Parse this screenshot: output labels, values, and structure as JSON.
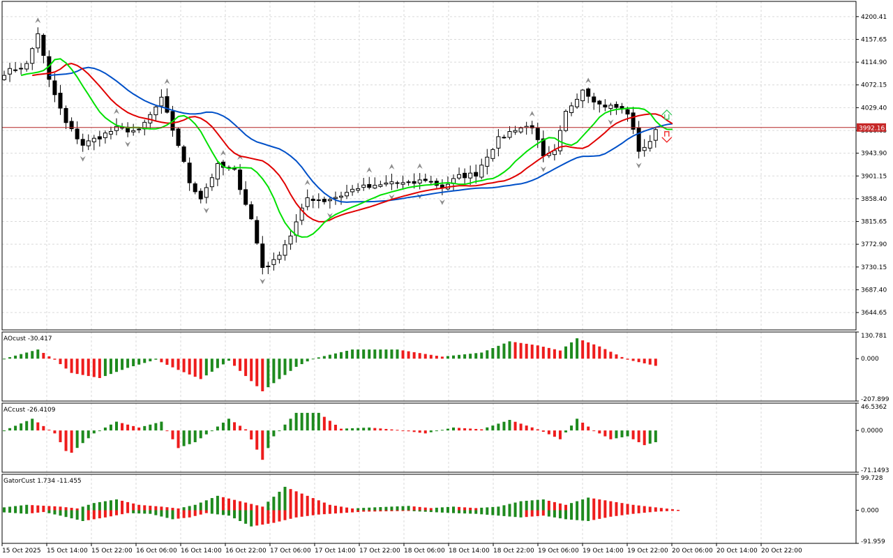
{
  "colors": {
    "background": "#ffffff",
    "grid": "#d9d9d9",
    "frame": "#000000",
    "candle": "#000000",
    "fractal": "#8c8c8c",
    "bid_line": "#b22222",
    "price_tag_bg": "#c62828",
    "ma_fast": "#00e000",
    "ma_mid": "#e00000",
    "ma_slow": "#0050c8",
    "hist_up": "#1e8a1e",
    "hist_down": "#ee1c1c",
    "arrow_up": "#34c759",
    "arrow_down": "#ee1c1c"
  },
  "chart_data": {
    "type": "candlestick-with-indicators",
    "x_tick_labels": [
      "15 Oct 2025",
      "15 Oct 14:00",
      "15 Oct 22:00",
      "16 Oct 06:00",
      "16 Oct 14:00",
      "16 Oct 22:00",
      "17 Oct 06:00",
      "17 Oct 14:00",
      "17 Oct 22:00",
      "18 Oct 06:00",
      "18 Oct 14:00",
      "18 Oct 22:00",
      "19 Oct 06:00",
      "19 Oct 14:00",
      "19 Oct 22:00",
      "20 Oct 06:00",
      "20 Oct 14:00",
      "20 Oct 22:00"
    ],
    "price_panel": {
      "ylim": [
        3612,
        4229
      ],
      "y_tick_labels": [
        "4200.41",
        "4157.65",
        "4114.90",
        "4072.15",
        "4029.40",
        "3986.65",
        "3943.90",
        "3901.15",
        "3858.40",
        "3815.65",
        "3772.90",
        "3730.15",
        "3687.40",
        "3644.65"
      ],
      "current_price": "3992.16",
      "close_anchors": [
        [
          0,
          4095
        ],
        [
          4,
          4110
        ],
        [
          6,
          4170
        ],
        [
          8,
          4080
        ],
        [
          11,
          4000
        ],
        [
          14,
          3960
        ],
        [
          17,
          3975
        ],
        [
          20,
          3990
        ],
        [
          24,
          3985
        ],
        [
          28,
          4045
        ],
        [
          31,
          3960
        ],
        [
          33,
          3890
        ],
        [
          35,
          3860
        ],
        [
          38,
          3920
        ],
        [
          41,
          3910
        ],
        [
          44,
          3820
        ],
        [
          46,
          3730
        ],
        [
          48,
          3740
        ],
        [
          51,
          3790
        ],
        [
          54,
          3860
        ],
        [
          57,
          3855
        ],
        [
          60,
          3865
        ],
        [
          63,
          3880
        ],
        [
          66,
          3880
        ],
        [
          69,
          3890
        ],
        [
          72,
          3885
        ],
        [
          75,
          3895
        ],
        [
          78,
          3880
        ],
        [
          81,
          3900
        ],
        [
          84,
          3905
        ],
        [
          86,
          3940
        ],
        [
          88,
          3970
        ],
        [
          91,
          3990
        ],
        [
          94,
          3995
        ],
        [
          96,
          3935
        ],
        [
          98,
          3945
        ],
        [
          100,
          4020
        ],
        [
          103,
          4065
        ],
        [
          106,
          4035
        ],
        [
          109,
          4030
        ],
        [
          111,
          4020
        ],
        [
          113,
          3950
        ],
        [
          115,
          3962
        ],
        [
          116,
          3992
        ]
      ]
    },
    "ao_panel": {
      "label": "AOcust -30.417",
      "ylim": [
        -207.899,
        130.781
      ],
      "y_tick_labels": [
        "130.781",
        "0.000",
        "-207.899"
      ],
      "anchors": [
        [
          0,
          0
        ],
        [
          6,
          45
        ],
        [
          9,
          -5
        ],
        [
          12,
          -70
        ],
        [
          17,
          -95
        ],
        [
          22,
          -45
        ],
        [
          27,
          -5
        ],
        [
          31,
          -55
        ],
        [
          35,
          -100
        ],
        [
          40,
          -10
        ],
        [
          46,
          -160
        ],
        [
          52,
          -40
        ],
        [
          55,
          0
        ],
        [
          62,
          45
        ],
        [
          70,
          45
        ],
        [
          78,
          10
        ],
        [
          85,
          30
        ],
        [
          90,
          85
        ],
        [
          95,
          65
        ],
        [
          99,
          40
        ],
        [
          102,
          100
        ],
        [
          106,
          60
        ],
        [
          111,
          -5
        ],
        [
          116,
          -35
        ]
      ]
    },
    "ac_panel": {
      "label": "ACcust -26.4109",
      "ylim": [
        -71.1493,
        46.5362
      ],
      "y_tick_labels": [
        "46.5362",
        "0.0000",
        "-71.1493"
      ],
      "anchors": [
        [
          0,
          0
        ],
        [
          5,
          20
        ],
        [
          9,
          -5
        ],
        [
          11,
          -35
        ],
        [
          12,
          -38
        ],
        [
          16,
          -5
        ],
        [
          20,
          15
        ],
        [
          24,
          5
        ],
        [
          28,
          15
        ],
        [
          31,
          -30
        ],
        [
          34,
          -20
        ],
        [
          37,
          0
        ],
        [
          40,
          20
        ],
        [
          43,
          2
        ],
        [
          46,
          -50
        ],
        [
          48,
          -10
        ],
        [
          52,
          30
        ],
        [
          56,
          30
        ],
        [
          60,
          3
        ],
        [
          65,
          5
        ],
        [
          70,
          1
        ],
        [
          75,
          -5
        ],
        [
          80,
          5
        ],
        [
          85,
          2
        ],
        [
          90,
          18
        ],
        [
          95,
          2
        ],
        [
          99,
          -15
        ],
        [
          102,
          20
        ],
        [
          105,
          0
        ],
        [
          108,
          -15
        ],
        [
          111,
          -10
        ],
        [
          114,
          -25
        ],
        [
          116,
          -20
        ]
      ]
    },
    "gator_panel": {
      "label": "GatorCust 1.734 -11.455",
      "ylim": [
        -91.959,
        99.728
      ],
      "y_tick_labels": [
        "99.728",
        "0.000",
        "-91.959"
      ],
      "upper_anchors": [
        [
          0,
          8
        ],
        [
          4,
          15
        ],
        [
          10,
          10
        ],
        [
          13,
          5
        ],
        [
          16,
          20
        ],
        [
          20,
          30
        ],
        [
          24,
          15
        ],
        [
          28,
          10
        ],
        [
          31,
          5
        ],
        [
          34,
          15
        ],
        [
          38,
          40
        ],
        [
          42,
          25
        ],
        [
          46,
          10
        ],
        [
          50,
          65
        ],
        [
          54,
          40
        ],
        [
          58,
          15
        ],
        [
          62,
          5
        ],
        [
          66,
          8
        ],
        [
          72,
          12
        ],
        [
          76,
          6
        ],
        [
          80,
          10
        ],
        [
          84,
          6
        ],
        [
          88,
          10
        ],
        [
          92,
          25
        ],
        [
          96,
          30
        ],
        [
          100,
          15
        ],
        [
          104,
          35
        ],
        [
          108,
          25
        ],
        [
          112,
          15
        ],
        [
          116,
          8
        ],
        [
          120,
          1
        ]
      ],
      "lower_anchors": [
        [
          0,
          6
        ],
        [
          4,
          10
        ],
        [
          7,
          5
        ],
        [
          10,
          15
        ],
        [
          14,
          30
        ],
        [
          18,
          20
        ],
        [
          22,
          8
        ],
        [
          26,
          10
        ],
        [
          30,
          25
        ],
        [
          33,
          20
        ],
        [
          36,
          8
        ],
        [
          40,
          15
        ],
        [
          44,
          45
        ],
        [
          48,
          35
        ],
        [
          52,
          20
        ],
        [
          56,
          12
        ],
        [
          60,
          8
        ],
        [
          64,
          4
        ],
        [
          68,
          3
        ],
        [
          72,
          2
        ],
        [
          76,
          5
        ],
        [
          80,
          8
        ],
        [
          84,
          10
        ],
        [
          88,
          15
        ],
        [
          92,
          20
        ],
        [
          96,
          15
        ],
        [
          100,
          25
        ],
        [
          104,
          30
        ],
        [
          108,
          18
        ],
        [
          112,
          10
        ],
        [
          116,
          4
        ],
        [
          120,
          1
        ]
      ]
    }
  }
}
